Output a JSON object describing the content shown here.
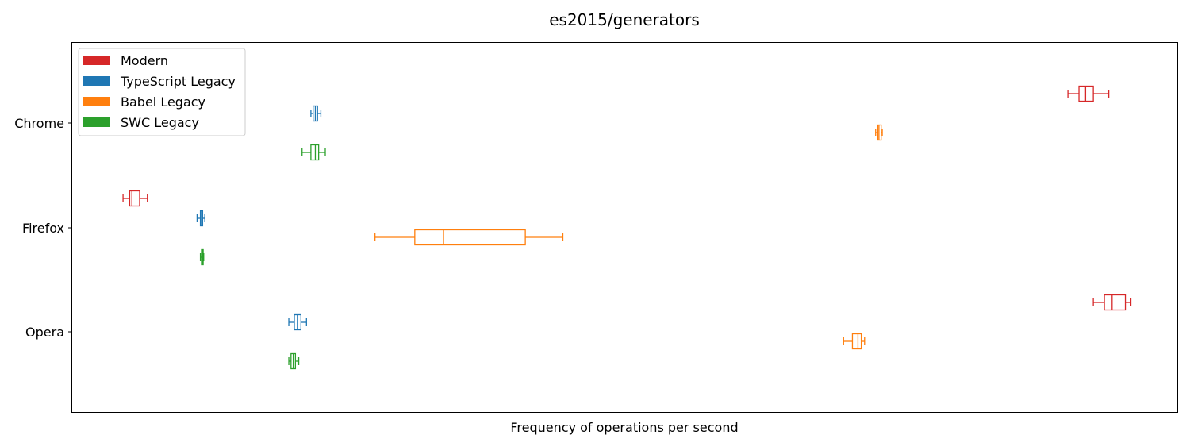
{
  "chart_data": {
    "type": "boxplot",
    "orientation": "horizontal",
    "title": "es2015/generators",
    "xlabel": "Frequency of operations per second",
    "ylabel": "",
    "x_ticks_shown": false,
    "xlim": [
      0,
      1000
    ],
    "categories": [
      "Chrome",
      "Firefox",
      "Opera"
    ],
    "legend": {
      "placement": "top-left"
    },
    "series": [
      {
        "name": "Modern",
        "color": "#d62728",
        "boxes": [
          {
            "category": "Chrome",
            "whislo": 901,
            "q1": 911,
            "median": 917,
            "q3": 924,
            "whishi": 938
          },
          {
            "category": "Firefox",
            "whislo": 46,
            "q1": 52,
            "median": 54,
            "q3": 61,
            "whishi": 68
          },
          {
            "category": "Opera",
            "whislo": 924,
            "q1": 934,
            "median": 941,
            "q3": 953,
            "whishi": 958
          }
        ]
      },
      {
        "name": "TypeScript Legacy",
        "color": "#1f77b4",
        "boxes": [
          {
            "category": "Chrome",
            "whislo": 216,
            "q1": 218,
            "median": 220,
            "q3": 222,
            "whishi": 225
          },
          {
            "category": "Firefox",
            "whislo": 113,
            "q1": 116,
            "median": 117,
            "q3": 118,
            "whishi": 120
          },
          {
            "category": "Opera",
            "whislo": 196,
            "q1": 201,
            "median": 204,
            "q3": 207,
            "whishi": 212
          }
        ]
      },
      {
        "name": "Babel Legacy",
        "color": "#ff7f0e",
        "boxes": [
          {
            "category": "Chrome",
            "whislo": 727,
            "q1": 729,
            "median": 730,
            "q3": 732,
            "whishi": 733
          },
          {
            "category": "Firefox",
            "whislo": 274,
            "q1": 310,
            "median": 336,
            "q3": 410,
            "whishi": 444
          },
          {
            "category": "Opera",
            "whislo": 698,
            "q1": 706,
            "median": 711,
            "q3": 714,
            "whishi": 717
          }
        ]
      },
      {
        "name": "SWC Legacy",
        "color": "#2ca02c",
        "boxes": [
          {
            "category": "Chrome",
            "whislo": 208,
            "q1": 216,
            "median": 220,
            "q3": 223,
            "whishi": 229
          },
          {
            "category": "Firefox",
            "whislo": 116,
            "q1": 117,
            "median": 118,
            "q3": 118.5,
            "whishi": 119
          },
          {
            "category": "Opera",
            "whislo": 196,
            "q1": 198,
            "median": 200,
            "q3": 202,
            "whishi": 205
          }
        ]
      }
    ]
  }
}
